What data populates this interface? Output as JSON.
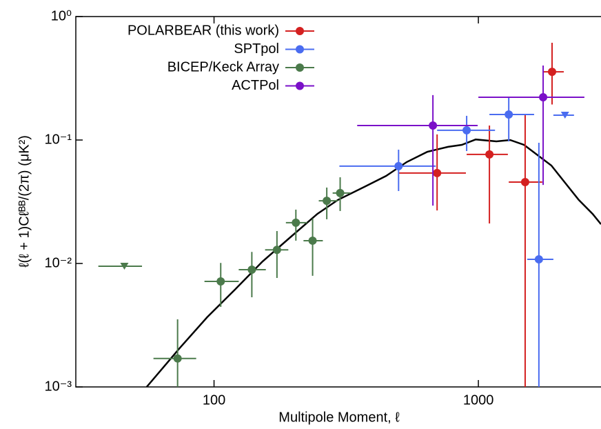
{
  "chart_data": {
    "type": "scatter",
    "x_label": "Multipole Moment, ℓ",
    "y_label": "ℓ(ℓ + 1)Cℓᴮᴮ/(2π) (μK²)",
    "log_x": true,
    "log_y": true,
    "xlim": [
      30,
      2910
    ],
    "ylim": [
      0.001,
      1
    ],
    "xticks": [
      100,
      1000
    ],
    "yticks": [
      {
        "value": 0.001,
        "label": "10⁻³"
      },
      {
        "value": 0.01,
        "label": "10⁻²"
      },
      {
        "value": 0.1,
        "label": "10⁻¹"
      },
      {
        "value": 1,
        "label": "10⁰"
      }
    ],
    "legend": "upper left",
    "series": [
      {
        "name": "POLARBEAR (this work)",
        "color": "#d42020",
        "x": [
          698,
          1101,
          1503,
          1900
        ],
        "y": [
          0.054,
          0.0764,
          0.0456,
          0.357
        ],
        "xlow": [
          499,
          903,
          1303,
          1758
        ],
        "xhigh": [
          897,
          1293,
          1745,
          2104
        ],
        "ylow": [
          0.0269,
          0.0211,
          0.001,
          0.194
        ],
        "yhigh": [
          0.111,
          0.131,
          0.163,
          0.613
        ],
        "marker": [
          "circle",
          "circle",
          "circle",
          "circle"
        ]
      },
      {
        "name": "SPTpol",
        "color": "#4a6cf0",
        "x": [
          499,
          903,
          1303,
          1694,
          2127
        ],
        "y": [
          0.0614,
          0.12,
          0.161,
          0.0108,
          0.159
        ],
        "xlow": [
          298,
          698,
          1101,
          1531,
          1922
        ],
        "xhigh": [
          690,
          1156,
          1625,
          1922,
          2300
        ],
        "ylow": [
          0.0386,
          0.0814,
          0.0975,
          0.001,
          null
        ],
        "yhigh": [
          0.0835,
          0.157,
          0.225,
          0.095,
          null
        ],
        "marker": [
          "circle",
          "circle",
          "circle",
          "circle",
          "triangle"
        ]
      },
      {
        "name": "BICEP/Keck Array",
        "color": "#4b7a4b",
        "x": [
          45.8,
          72.8,
          106,
          139,
          173,
          204,
          236,
          267,
          300
        ],
        "y": [
          0.0095,
          0.0017,
          0.00716,
          0.00891,
          0.0129,
          0.0214,
          0.0153,
          0.0322,
          0.0372
        ],
        "xlow": [
          36.5,
          59,
          92,
          124,
          156,
          187,
          218,
          249,
          281
        ],
        "xhigh": [
          53.4,
          85.6,
          124,
          157,
          191,
          225,
          258,
          294,
          328
        ],
        "ylow": [
          null,
          0.001,
          0.00445,
          0.00532,
          0.00763,
          0.0153,
          0.00794,
          0.0228,
          0.0266
        ],
        "yhigh": [
          null,
          0.00353,
          0.0101,
          0.0124,
          0.0183,
          0.0273,
          0.0231,
          0.0412,
          0.0499
        ],
        "marker": [
          "triangle",
          "circle",
          "circle",
          "circle",
          "circle",
          "circle",
          "circle",
          "circle",
          "circle"
        ]
      },
      {
        "name": "ACTPol",
        "color": "#7a10c8",
        "x": [
          673,
          1758
        ],
        "y": [
          0.131,
          0.222
        ],
        "xlow": [
          348,
          1000
        ],
        "xhigh": [
          994,
          2518
        ],
        "ylow": [
          0.0294,
          0.0433
        ],
        "yhigh": [
          0.231,
          0.401
        ],
        "marker": [
          "circle",
          "circle"
        ]
      }
    ],
    "theory": {
      "color": "#000000",
      "x": [
        55.6,
        74.1,
        94.2,
        120,
        152,
        193,
        246,
        294,
        374,
        448,
        536,
        641,
        768,
        866,
        977,
        1170,
        1319,
        1487,
        1676,
        1889,
        2127,
        2399,
        2704,
        2910
      ],
      "y": [
        0.001,
        0.00206,
        0.00367,
        0.00614,
        0.0103,
        0.0161,
        0.0252,
        0.0327,
        0.0422,
        0.0512,
        0.0663,
        0.0803,
        0.088,
        0.0914,
        0.101,
        0.0975,
        0.1,
        0.0914,
        0.0754,
        0.0621,
        0.0451,
        0.0327,
        0.0252,
        0.0208
      ]
    }
  }
}
